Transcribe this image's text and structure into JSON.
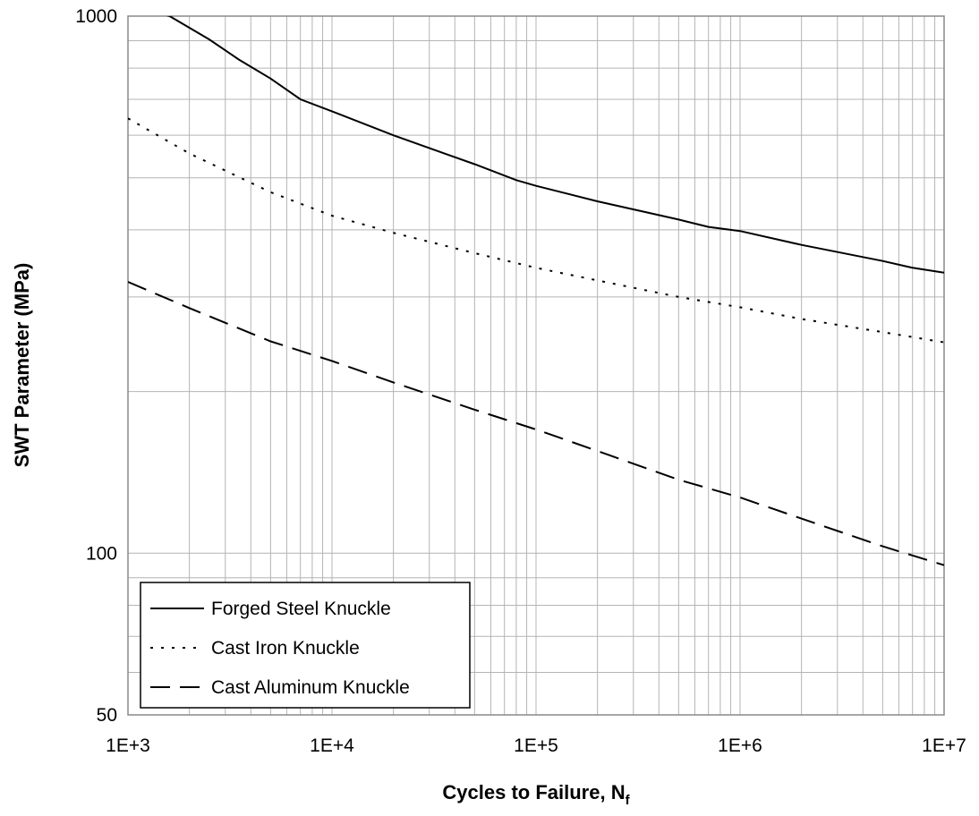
{
  "chart_data": {
    "type": "line",
    "x_scale": "log",
    "y_scale": "log",
    "xlabel": "Cycles to Failure, N",
    "xlabel_subscript": "f",
    "ylabel": "SWT Parameter (MPa)",
    "xlim": [
      1000,
      10000000
    ],
    "ylim": [
      50,
      1000
    ],
    "x_ticks": [
      {
        "value": 1000,
        "label": "1E+3"
      },
      {
        "value": 10000,
        "label": "1E+4"
      },
      {
        "value": 100000,
        "label": "1E+5"
      },
      {
        "value": 1000000,
        "label": "1E+6"
      },
      {
        "value": 10000000,
        "label": "1E+7"
      }
    ],
    "y_ticks": [
      {
        "value": 50,
        "label": "50"
      },
      {
        "value": 100,
        "label": "100"
      },
      {
        "value": 1000,
        "label": "1000"
      }
    ],
    "grid": true,
    "legend_position": "bottom-left",
    "series": [
      {
        "name": "Forged Steel Knuckle",
        "line_style": "solid",
        "x": [
          1000,
          1600,
          2500,
          3500,
          5000,
          7000,
          10000,
          20000,
          50000,
          80000,
          100000,
          200000,
          500000,
          700000,
          1000000,
          2000000,
          5000000,
          7000000,
          10000000
        ],
        "y": [
          1050,
          1000,
          905,
          830,
          765,
          700,
          665,
          600,
          530,
          495,
          483,
          452,
          418,
          405,
          398,
          375,
          350,
          340,
          333
        ]
      },
      {
        "name": "Cast Iron Knuckle",
        "line_style": "dotted",
        "x": [
          1000,
          2000,
          5000,
          10000,
          20000,
          50000,
          100000,
          200000,
          500000,
          1000000,
          2000000,
          5000000,
          10000000
        ],
        "y": [
          645,
          555,
          470,
          425,
          395,
          362,
          340,
          322,
          300,
          287,
          273,
          258,
          247
        ]
      },
      {
        "name": "Cast Aluminum Knuckle",
        "line_style": "dashed",
        "x": [
          1000,
          2000,
          5000,
          10000,
          20000,
          50000,
          100000,
          200000,
          500000,
          1000000,
          2000000,
          5000000,
          10000000
        ],
        "y": [
          320,
          286,
          248,
          228,
          208,
          185,
          170,
          155,
          137,
          127,
          116,
          103,
          95
        ]
      }
    ]
  }
}
